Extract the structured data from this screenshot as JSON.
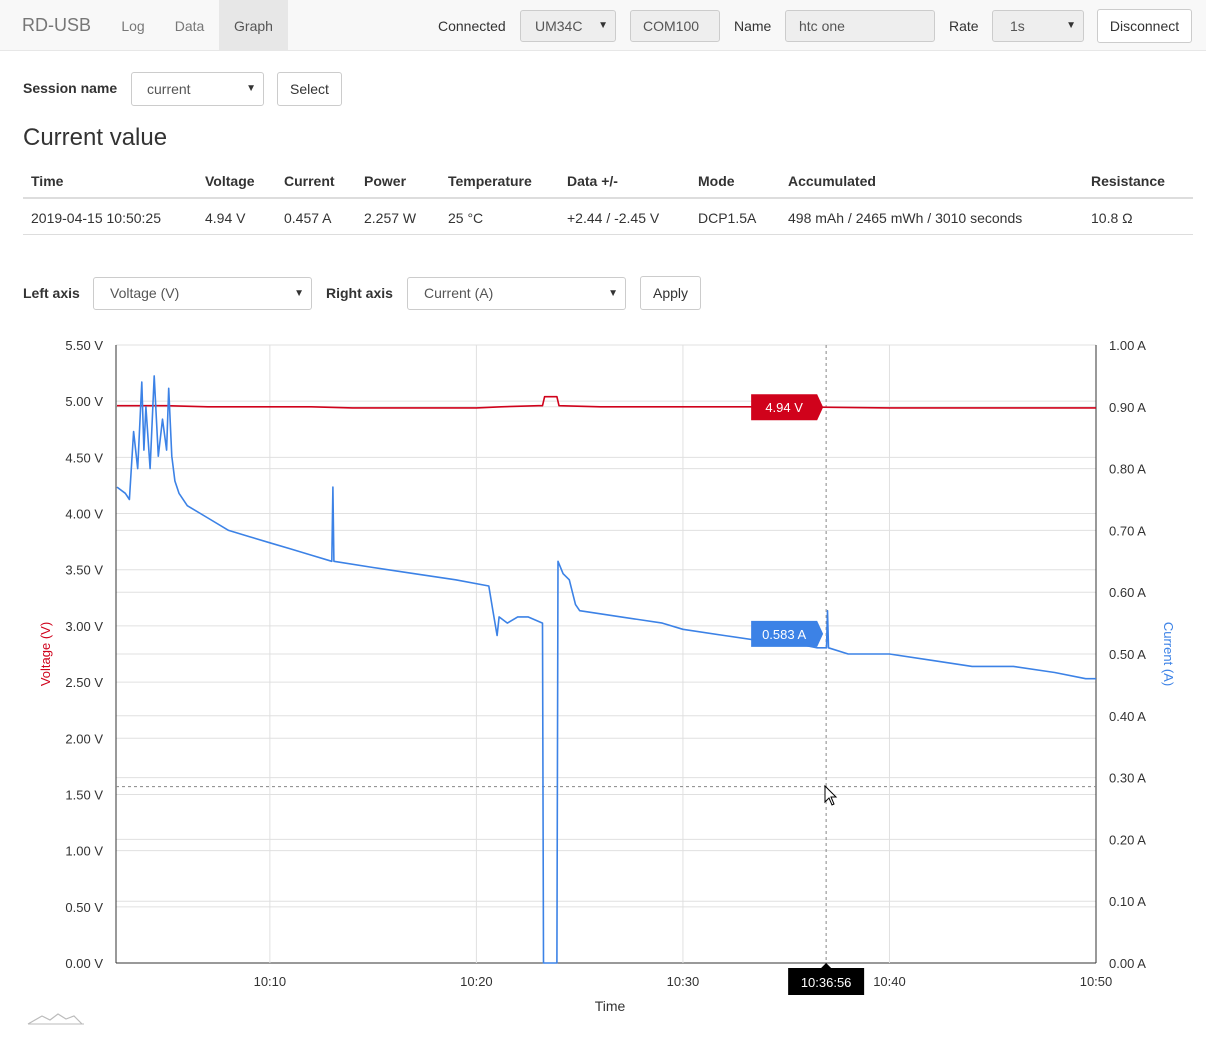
{
  "navbar": {
    "brand": "RD-USB",
    "links": [
      {
        "label": "Log"
      },
      {
        "label": "Data"
      },
      {
        "label": "Graph",
        "active": true
      }
    ],
    "connected_label": "Connected",
    "device_value": "UM34C",
    "port_value": "COM100",
    "name_label": "Name",
    "name_value": "htc one",
    "rate_label": "Rate",
    "rate_value": "1s",
    "disconnect_label": "Disconnect"
  },
  "session": {
    "label": "Session name",
    "value": "current",
    "select_label": "Select"
  },
  "current_value": {
    "title": "Current value",
    "headers": [
      "Time",
      "Voltage",
      "Current",
      "Power",
      "Temperature",
      "Data +/-",
      "Mode",
      "Accumulated",
      "Resistance"
    ],
    "row": [
      "2019-04-15 10:50:25",
      "4.94 V",
      "0.457 A",
      "2.257 W",
      "25 °C",
      "+2.44 / -2.45 V",
      "DCP1.5A",
      "498 mAh / 2465 mWh / 3010 seconds",
      "10.8 Ω"
    ]
  },
  "axis_controls": {
    "left_label": "Left axis",
    "left_value": "Voltage (V)",
    "right_label": "Right axis",
    "right_value": "Current (A)",
    "apply_label": "Apply"
  },
  "chart_data": {
    "type": "line",
    "xlabel": "Time",
    "ylabel_left": "Voltage (V)",
    "ylabel_right": "Current (A)",
    "x_ticks": [
      "10:10",
      "10:20",
      "10:30",
      "10:40",
      "10:50"
    ],
    "x_tick_minutes": [
      10,
      20,
      30,
      40,
      50
    ],
    "x_range_minutes": [
      2.55,
      50.0
    ],
    "y_left_ticks": [
      "0.00 V",
      "0.50 V",
      "1.00 V",
      "1.50 V",
      "2.00 V",
      "2.50 V",
      "3.00 V",
      "3.50 V",
      "4.00 V",
      "4.50 V",
      "5.00 V",
      "5.50 V"
    ],
    "y_left_range": [
      0,
      5.5
    ],
    "y_right_ticks": [
      "0.00 A",
      "0.10 A",
      "0.20 A",
      "0.30 A",
      "0.40 A",
      "0.50 A",
      "0.60 A",
      "0.70 A",
      "0.80 A",
      "0.90 A",
      "1.00 A"
    ],
    "y_right_range": [
      0,
      1.0
    ],
    "grid": true,
    "series": [
      {
        "name": "Voltage (V)",
        "axis": "left",
        "color": "#d0021b",
        "points": [
          [
            2.6,
            4.96
          ],
          [
            4,
            4.96
          ],
          [
            5,
            4.96
          ],
          [
            7,
            4.95
          ],
          [
            10,
            4.95
          ],
          [
            12,
            4.95
          ],
          [
            14,
            4.94
          ],
          [
            17,
            4.94
          ],
          [
            20,
            4.94
          ],
          [
            21.2,
            4.95
          ],
          [
            23,
            4.96
          ],
          [
            23.2,
            4.96
          ],
          [
            23.3,
            5.04
          ],
          [
            23.9,
            5.04
          ],
          [
            24,
            4.96
          ],
          [
            26,
            4.95
          ],
          [
            30,
            4.95
          ],
          [
            35,
            4.95
          ],
          [
            40,
            4.94
          ],
          [
            45,
            4.94
          ],
          [
            50,
            4.94
          ]
        ]
      },
      {
        "name": "Current (A)",
        "axis": "right",
        "color": "#3c82e6",
        "points": [
          [
            2.6,
            0.77
          ],
          [
            3.0,
            0.76
          ],
          [
            3.2,
            0.75
          ],
          [
            3.4,
            0.86
          ],
          [
            3.6,
            0.8
          ],
          [
            3.8,
            0.94
          ],
          [
            3.9,
            0.83
          ],
          [
            4.0,
            0.9
          ],
          [
            4.2,
            0.8
          ],
          [
            4.4,
            0.95
          ],
          [
            4.6,
            0.82
          ],
          [
            4.8,
            0.88
          ],
          [
            5.0,
            0.83
          ],
          [
            5.1,
            0.93
          ],
          [
            5.25,
            0.82
          ],
          [
            5.4,
            0.78
          ],
          [
            5.6,
            0.76
          ],
          [
            6,
            0.74
          ],
          [
            7,
            0.72
          ],
          [
            8,
            0.7
          ],
          [
            9,
            0.69
          ],
          [
            10,
            0.68
          ],
          [
            11,
            0.67
          ],
          [
            12,
            0.66
          ],
          [
            13,
            0.65
          ],
          [
            13.05,
            0.77
          ],
          [
            13.1,
            0.65
          ],
          [
            15,
            0.64
          ],
          [
            17,
            0.63
          ],
          [
            19,
            0.62
          ],
          [
            20.6,
            0.61
          ],
          [
            20.8,
            0.57
          ],
          [
            21.0,
            0.53
          ],
          [
            21.1,
            0.56
          ],
          [
            21.5,
            0.55
          ],
          [
            22.0,
            0.56
          ],
          [
            22.5,
            0.56
          ],
          [
            23.2,
            0.55
          ],
          [
            23.25,
            0.0
          ],
          [
            23.9,
            0.0
          ],
          [
            23.95,
            0.65
          ],
          [
            24.2,
            0.63
          ],
          [
            24.5,
            0.62
          ],
          [
            24.8,
            0.58
          ],
          [
            25,
            0.57
          ],
          [
            27,
            0.56
          ],
          [
            29,
            0.55
          ],
          [
            30,
            0.54
          ],
          [
            32,
            0.53
          ],
          [
            34,
            0.52
          ],
          [
            35,
            0.52
          ],
          [
            36.5,
            0.51
          ],
          [
            36.95,
            0.51
          ],
          [
            37.0,
            0.57
          ],
          [
            37.05,
            0.51
          ],
          [
            38,
            0.5
          ],
          [
            40,
            0.5
          ],
          [
            42,
            0.49
          ],
          [
            44,
            0.48
          ],
          [
            46,
            0.48
          ],
          [
            48,
            0.47
          ],
          [
            49.5,
            0.46
          ],
          [
            50,
            0.46
          ]
        ]
      }
    ],
    "tooltip": {
      "time": "10:36:56",
      "voltage_label": "4.94 V",
      "current_label": "0.583 A"
    },
    "cursor_voltage": 1.57
  }
}
